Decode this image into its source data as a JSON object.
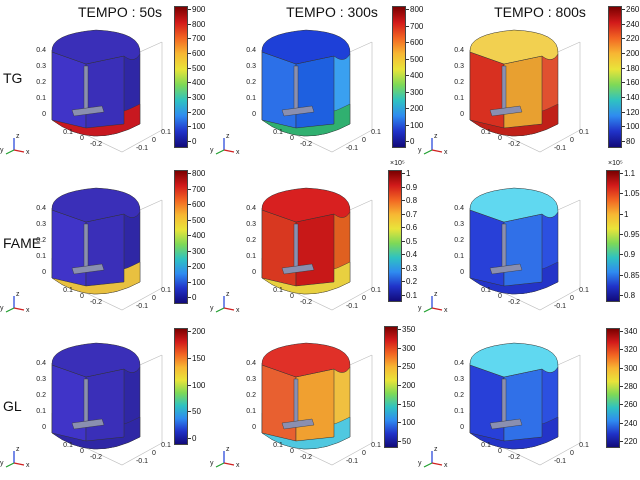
{
  "columns": [
    "TEMPO : 50s",
    "TEMPO : 300s",
    "TEMPO : 800s"
  ],
  "rows": [
    "TG",
    "FAME",
    "GL"
  ],
  "axis_labels": {
    "z_ticks": [
      "0.4",
      "0.3",
      "0.2",
      "0.1",
      "0"
    ],
    "y_ticks": [
      "0.1",
      "0",
      "-0.2"
    ],
    "x_ticks": [
      "0.1",
      "0",
      "-0.1"
    ],
    "triad": {
      "x": "x",
      "y": "y",
      "z": "z"
    }
  },
  "panels": [
    {
      "row": "TG",
      "col": 0,
      "exponent": "",
      "colorbar_ticks": [
        "900",
        "800",
        "700",
        "600",
        "500",
        "400",
        "300",
        "200",
        "100",
        "0"
      ],
      "colors": {
        "top": "#3a2fb8",
        "side": "#2f27a5",
        "front": "#4034c8",
        "inner": "#3a2fb8",
        "bottom": "#c81820"
      }
    },
    {
      "row": "TG",
      "col": 1,
      "exponent": "",
      "colorbar_ticks": [
        "800",
        "700",
        "600",
        "500",
        "400",
        "300",
        "200",
        "100",
        "0"
      ],
      "colors": {
        "top": "#1e40d8",
        "side": "#3aa0f0",
        "front": "#2c70e8",
        "inner": "#1e60e0",
        "bottom": "#30b070"
      }
    },
    {
      "row": "TG",
      "col": 2,
      "exponent": "",
      "colorbar_ticks": [
        "260",
        "240",
        "220",
        "200",
        "180",
        "160",
        "140",
        "120",
        "100",
        "80"
      ],
      "colors": {
        "top": "#f2d050",
        "side": "#e05030",
        "front": "#d83020",
        "inner": "#e8a030",
        "bottom": "#c02018"
      }
    },
    {
      "row": "FAME",
      "col": 0,
      "exponent": "",
      "colorbar_ticks": [
        "800",
        "700",
        "600",
        "500",
        "400",
        "300",
        "200",
        "100",
        "0"
      ],
      "colors": {
        "top": "#3a2fb8",
        "side": "#2f27a5",
        "front": "#4034c8",
        "inner": "#3a2fb8",
        "bottom": "#e8c040"
      }
    },
    {
      "row": "FAME",
      "col": 1,
      "exponent": "×10⁵",
      "colorbar_ticks": [
        "1",
        "0.9",
        "0.8",
        "0.7",
        "0.6",
        "0.5",
        "0.4",
        "0.3",
        "0.2",
        "0.1"
      ],
      "colors": {
        "top": "#d82020",
        "side": "#e06020",
        "front": "#d83820",
        "inner": "#c81818",
        "bottom": "#e8d040"
      }
    },
    {
      "row": "FAME",
      "col": 2,
      "exponent": "×10⁵",
      "colorbar_ticks": [
        "1.1",
        "1.05",
        "1",
        "0.95",
        "0.9",
        "0.85",
        "0.8"
      ],
      "colors": {
        "top": "#60d8f0",
        "side": "#2c50e0",
        "front": "#2840d8",
        "inner": "#3070e8",
        "bottom": "#2434c8"
      }
    },
    {
      "row": "GL",
      "col": 0,
      "exponent": "",
      "colorbar_ticks": [
        "200",
        "150",
        "100",
        "50",
        "0"
      ],
      "colors": {
        "top": "#3a2fb8",
        "side": "#2f27a5",
        "front": "#4034c8",
        "inner": "#3a2fb8",
        "bottom": "#2f27a5"
      }
    },
    {
      "row": "GL",
      "col": 1,
      "exponent": "",
      "colorbar_ticks": [
        "350",
        "300",
        "250",
        "200",
        "150",
        "100",
        "50"
      ],
      "colors": {
        "top": "#e03028",
        "side": "#f0c040",
        "front": "#e86030",
        "inner": "#f0a030",
        "bottom": "#50c8e0"
      }
    },
    {
      "row": "GL",
      "col": 2,
      "exponent": "",
      "colorbar_ticks": [
        "340",
        "320",
        "300",
        "280",
        "260",
        "240",
        "220"
      ],
      "colors": {
        "top": "#60d8f0",
        "side": "#2c50e0",
        "front": "#2840d8",
        "inner": "#3070e8",
        "bottom": "#2434c8"
      }
    }
  ],
  "colormap": [
    "#7a0000",
    "#d21a1a",
    "#f26522",
    "#f7b733",
    "#e9e43a",
    "#7ed957",
    "#2fc2c2",
    "#2f8bf0",
    "#2032c8",
    "#120a7a"
  ]
}
